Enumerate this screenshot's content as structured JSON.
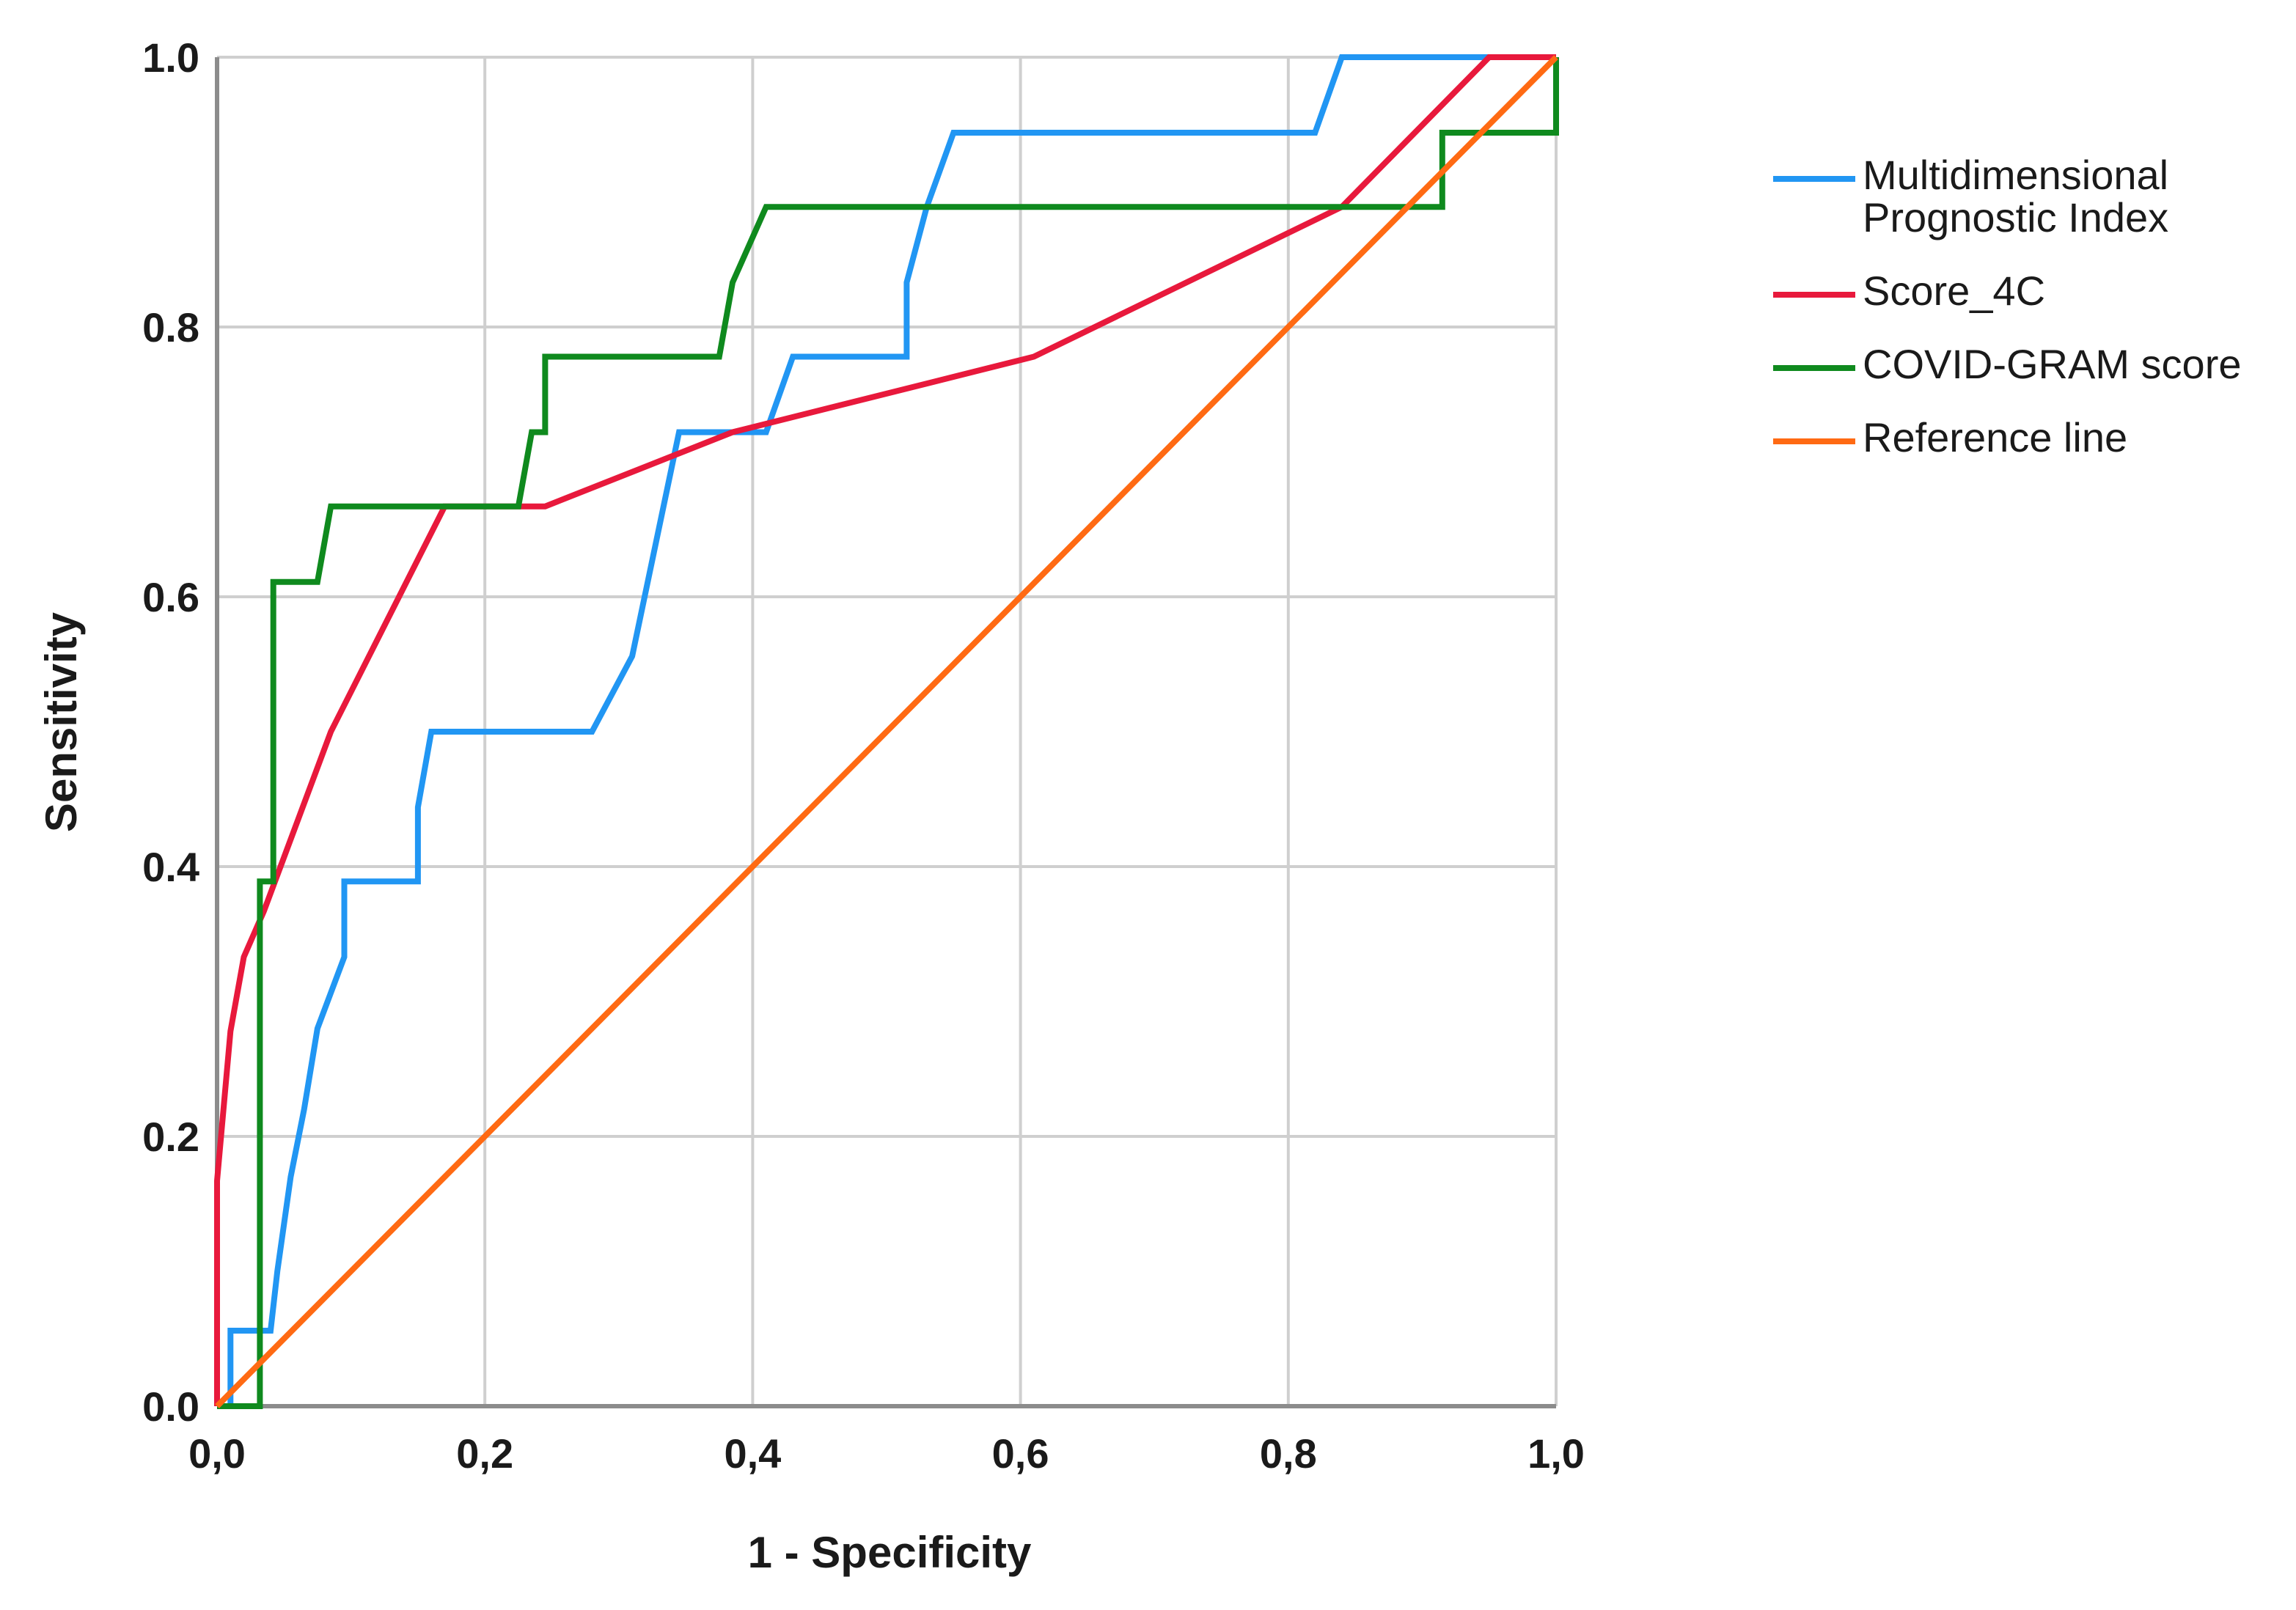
{
  "chart_data": {
    "type": "line",
    "title": "",
    "xlabel": "1 - Specificity",
    "ylabel": "Sensitivity",
    "xlim": [
      0,
      1
    ],
    "ylim": [
      0,
      1
    ],
    "x_ticks": [
      "0,0",
      "0,2",
      "0,4",
      "0,6",
      "0,8",
      "1,0"
    ],
    "y_ticks": [
      "0.0",
      "0.2",
      "0.4",
      "0.6",
      "0.8",
      "1.0"
    ],
    "grid": true,
    "legend_position": "right",
    "series": [
      {
        "name": "Multidimensional Prognostic Index",
        "legend_lines": [
          "Multidimensional",
          "Prognostic Index"
        ],
        "color": "#2196f3",
        "points": [
          [
            0,
            0
          ],
          [
            0.01,
            0
          ],
          [
            0.01,
            0.056
          ],
          [
            0.04,
            0.056
          ],
          [
            0.045,
            0.1
          ],
          [
            0.055,
            0.17
          ],
          [
            0.065,
            0.22
          ],
          [
            0.075,
            0.28
          ],
          [
            0.095,
            0.333
          ],
          [
            0.095,
            0.389
          ],
          [
            0.15,
            0.389
          ],
          [
            0.15,
            0.444
          ],
          [
            0.16,
            0.5
          ],
          [
            0.28,
            0.5
          ],
          [
            0.31,
            0.556
          ],
          [
            0.345,
            0.722
          ],
          [
            0.41,
            0.722
          ],
          [
            0.43,
            0.778
          ],
          [
            0.515,
            0.778
          ],
          [
            0.515,
            0.833
          ],
          [
            0.53,
            0.889
          ],
          [
            0.55,
            0.944
          ],
          [
            0.82,
            0.944
          ],
          [
            0.84,
            1.0
          ],
          [
            1.0,
            1.0
          ]
        ]
      },
      {
        "name": "Score_4C",
        "legend_lines": [
          "Score_4C"
        ],
        "color": "#e8193c",
        "points": [
          [
            0,
            0
          ],
          [
            0,
            0.167
          ],
          [
            0.01,
            0.278
          ],
          [
            0.02,
            0.333
          ],
          [
            0.035,
            0.367
          ],
          [
            0.085,
            0.5
          ],
          [
            0.17,
            0.667
          ],
          [
            0.245,
            0.667
          ],
          [
            0.385,
            0.722
          ],
          [
            0.61,
            0.778
          ],
          [
            0.84,
            0.889
          ],
          [
            0.95,
            1.0
          ],
          [
            1.0,
            1.0
          ]
        ]
      },
      {
        "name": "COVID-GRAM score",
        "legend_lines": [
          "COVID-GRAM score"
        ],
        "color": "#0f8a1e",
        "points": [
          [
            0,
            0
          ],
          [
            0.032,
            0
          ],
          [
            0.032,
            0.389
          ],
          [
            0.042,
            0.389
          ],
          [
            0.042,
            0.611
          ],
          [
            0.075,
            0.611
          ],
          [
            0.085,
            0.667
          ],
          [
            0.225,
            0.667
          ],
          [
            0.235,
            0.722
          ],
          [
            0.245,
            0.722
          ],
          [
            0.245,
            0.778
          ],
          [
            0.375,
            0.778
          ],
          [
            0.385,
            0.833
          ],
          [
            0.41,
            0.889
          ],
          [
            0.915,
            0.889
          ],
          [
            0.915,
            0.944
          ],
          [
            1.0,
            0.944
          ],
          [
            1.0,
            1.0
          ]
        ]
      },
      {
        "name": "Reference line",
        "legend_lines": [
          "Reference line"
        ],
        "color": "#ff6a13",
        "points": [
          [
            0,
            0
          ],
          [
            1,
            1
          ]
        ]
      }
    ]
  }
}
